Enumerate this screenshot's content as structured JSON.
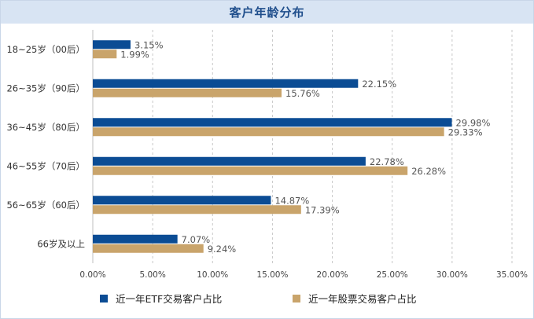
{
  "chart_data": {
    "type": "bar",
    "orientation": "horizontal",
    "title": "客户年龄分布",
    "categories": [
      "18~25岁（00后）",
      "26~35岁（90后）",
      "36~45岁（80后）",
      "46~55岁（70后）",
      "56~65岁（60后）",
      "66岁及以上"
    ],
    "series": [
      {
        "name": "近一年ETF交易客户占比",
        "color": "#0b4c94",
        "values": [
          3.15,
          22.15,
          29.98,
          22.78,
          14.87,
          7.07
        ],
        "labels": [
          "3.15%",
          "22.15%",
          "29.98%",
          "22.78%",
          "14.87%",
          "7.07%"
        ]
      },
      {
        "name": "近一年股票交易客户占比",
        "color": "#c9a46b",
        "values": [
          1.99,
          15.76,
          29.33,
          26.28,
          17.39,
          9.24
        ],
        "labels": [
          "1.99%",
          "15.76%",
          "29.33%",
          "26.28%",
          "17.39%",
          "9.24%"
        ]
      }
    ],
    "xlim": [
      0,
      35
    ],
    "xticks": [
      "0.00%",
      "5.00%",
      "10.00%",
      "15.00%",
      "20.00%",
      "25.00%",
      "30.00%",
      "35.00%"
    ],
    "grid": "vertical dashed",
    "legend": "bottom"
  }
}
